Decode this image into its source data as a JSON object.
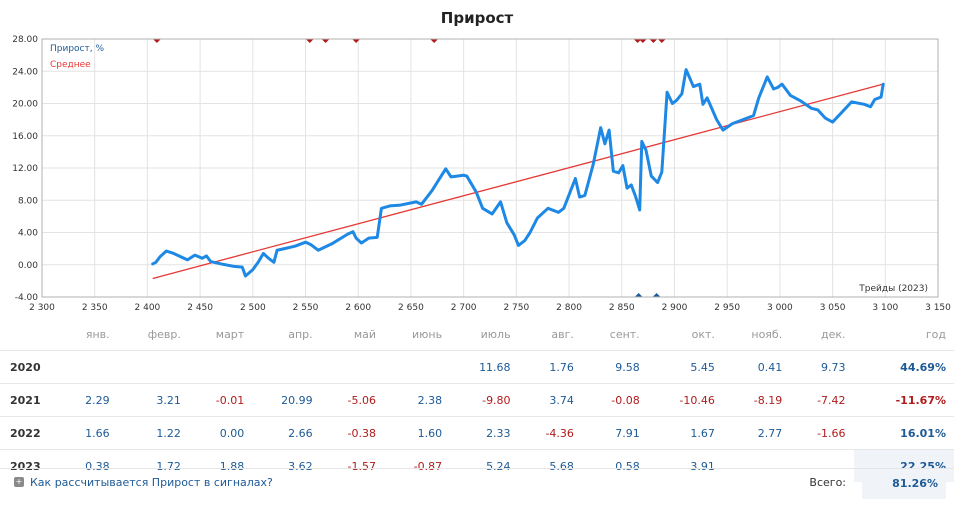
{
  "chart_data": {
    "type": "line",
    "title": "Прирост",
    "xlabel": "Трейды (2023)",
    "ylabel": "",
    "xlim": [
      2300,
      3150
    ],
    "ylim": [
      -4,
      28
    ],
    "x_ticks": [
      "2 300",
      "2 350",
      "2 400",
      "2 450",
      "2 500",
      "2 550",
      "2 600",
      "2 650",
      "2 700",
      "2 750",
      "2 800",
      "2 850",
      "2 900",
      "2 950",
      "3 000",
      "3 050",
      "3 100",
      "3 150"
    ],
    "y_ticks": [
      "28.00",
      "24.00",
      "20.00",
      "16.00",
      "12.00",
      "8.00",
      "4.00",
      "0.00",
      "-4.00"
    ],
    "grid": true,
    "legend_position": "top-left",
    "series": [
      {
        "name": "Прирост, %",
        "color": "#1e88e5",
        "points": [
          [
            2405,
            0.1
          ],
          [
            2408,
            0.3
          ],
          [
            2412,
            1.0
          ],
          [
            2418,
            1.7
          ],
          [
            2425,
            1.4
          ],
          [
            2438,
            0.6
          ],
          [
            2445,
            1.2
          ],
          [
            2452,
            0.8
          ],
          [
            2456,
            1.1
          ],
          [
            2460,
            0.4
          ],
          [
            2470,
            0.1
          ],
          [
            2482,
            -0.2
          ],
          [
            2490,
            -0.3
          ],
          [
            2493,
            -1.4
          ],
          [
            2500,
            -0.6
          ],
          [
            2505,
            0.3
          ],
          [
            2510,
            1.4
          ],
          [
            2515,
            0.8
          ],
          [
            2520,
            0.3
          ],
          [
            2523,
            1.8
          ],
          [
            2530,
            2.0
          ],
          [
            2540,
            2.3
          ],
          [
            2550,
            2.8
          ],
          [
            2555,
            2.5
          ],
          [
            2562,
            1.8
          ],
          [
            2575,
            2.6
          ],
          [
            2590,
            3.8
          ],
          [
            2595,
            4.1
          ],
          [
            2598,
            3.3
          ],
          [
            2603,
            2.7
          ],
          [
            2610,
            3.3
          ],
          [
            2618,
            3.4
          ],
          [
            2622,
            7.0
          ],
          [
            2630,
            7.3
          ],
          [
            2640,
            7.4
          ],
          [
            2655,
            7.8
          ],
          [
            2660,
            7.5
          ],
          [
            2670,
            9.2
          ],
          [
            2683,
            11.9
          ],
          [
            2688,
            10.9
          ],
          [
            2700,
            11.1
          ],
          [
            2703,
            11.0
          ],
          [
            2712,
            9.0
          ],
          [
            2718,
            7.0
          ],
          [
            2727,
            6.3
          ],
          [
            2735,
            7.8
          ],
          [
            2741,
            5.2
          ],
          [
            2748,
            3.7
          ],
          [
            2752,
            2.4
          ],
          [
            2758,
            3.0
          ],
          [
            2763,
            4.0
          ],
          [
            2770,
            5.8
          ],
          [
            2780,
            7.0
          ],
          [
            2790,
            6.5
          ],
          [
            2795,
            7.0
          ],
          [
            2806,
            10.7
          ],
          [
            2810,
            8.4
          ],
          [
            2815,
            8.6
          ],
          [
            2823,
            12.5
          ],
          [
            2830,
            17.0
          ],
          [
            2834,
            15.0
          ],
          [
            2838,
            16.7
          ],
          [
            2842,
            11.6
          ],
          [
            2847,
            11.4
          ],
          [
            2851,
            12.3
          ],
          [
            2855,
            9.5
          ],
          [
            2859,
            9.9
          ],
          [
            2863,
            8.5
          ],
          [
            2867,
            6.8
          ],
          [
            2869,
            15.3
          ],
          [
            2873,
            14.2
          ],
          [
            2878,
            11.0
          ],
          [
            2884,
            10.2
          ],
          [
            2888,
            11.5
          ],
          [
            2893,
            21.4
          ],
          [
            2898,
            20.0
          ],
          [
            2902,
            20.4
          ],
          [
            2907,
            21.2
          ],
          [
            2911,
            24.2
          ],
          [
            2918,
            22.1
          ],
          [
            2924,
            22.4
          ],
          [
            2927,
            19.9
          ],
          [
            2931,
            20.7
          ],
          [
            2940,
            18.0
          ],
          [
            2946,
            16.7
          ],
          [
            2955,
            17.5
          ],
          [
            2965,
            18.0
          ],
          [
            2975,
            18.5
          ],
          [
            2980,
            20.7
          ],
          [
            2988,
            23.3
          ],
          [
            2994,
            21.8
          ],
          [
            2998,
            22.0
          ],
          [
            3002,
            22.4
          ],
          [
            3010,
            21.0
          ],
          [
            3020,
            20.3
          ],
          [
            3030,
            19.4
          ],
          [
            3036,
            19.2
          ],
          [
            3043,
            18.2
          ],
          [
            3050,
            17.7
          ],
          [
            3058,
            18.8
          ],
          [
            3068,
            20.2
          ],
          [
            3080,
            19.9
          ],
          [
            3086,
            19.6
          ],
          [
            3090,
            20.5
          ],
          [
            3096,
            20.8
          ],
          [
            3098,
            22.4
          ]
        ]
      },
      {
        "name": "Среднее",
        "color": "#e53935",
        "points": [
          [
            2405,
            -1.7
          ],
          [
            3098,
            22.4
          ]
        ]
      }
    ],
    "top_markers_x": [
      2409,
      2554,
      2569,
      2598,
      2672,
      2865,
      2870,
      2880,
      2888
    ],
    "bottom_markers_x": [
      2866,
      2883
    ]
  },
  "table": {
    "headers": [
      "янв.",
      "февр.",
      "март",
      "апр.",
      "май",
      "июнь",
      "июль",
      "авг.",
      "сент.",
      "окт.",
      "нояб.",
      "дек.",
      "год"
    ],
    "rows": [
      {
        "year": "2020",
        "cells": [
          "",
          "",
          "",
          "",
          "",
          "",
          "11.68",
          "1.76",
          "9.58",
          "5.45",
          "0.41",
          "9.73"
        ],
        "total": "44.69%"
      },
      {
        "year": "2021",
        "cells": [
          "2.29",
          "3.21",
          "-0.01",
          "20.99",
          "-5.06",
          "2.38",
          "-9.80",
          "3.74",
          "-0.08",
          "-10.46",
          "-8.19",
          "-7.42"
        ],
        "total": "-11.67%"
      },
      {
        "year": "2022",
        "cells": [
          "1.66",
          "1.22",
          "0.00",
          "2.66",
          "-0.38",
          "1.60",
          "2.33",
          "-4.36",
          "7.91",
          "1.67",
          "2.77",
          "-1.66"
        ],
        "total": "16.01%"
      },
      {
        "year": "2023",
        "cells": [
          "0.38",
          "1.72",
          "1.88",
          "3.62",
          "-1.57",
          "-0.87",
          "5.24",
          "5.68",
          "0.58",
          "3.91",
          "",
          ""
        ],
        "total": "22.25%"
      }
    ]
  },
  "footer": {
    "help_link": "Как рассчитывается Прирост в сигналах?",
    "help_icon": "plus-square-icon",
    "total_label": "Всего:",
    "total_value": "81.26%"
  },
  "colors": {
    "positive": "#1e5a96",
    "negative": "#b01c1c",
    "grid": "#e0e0e0"
  }
}
